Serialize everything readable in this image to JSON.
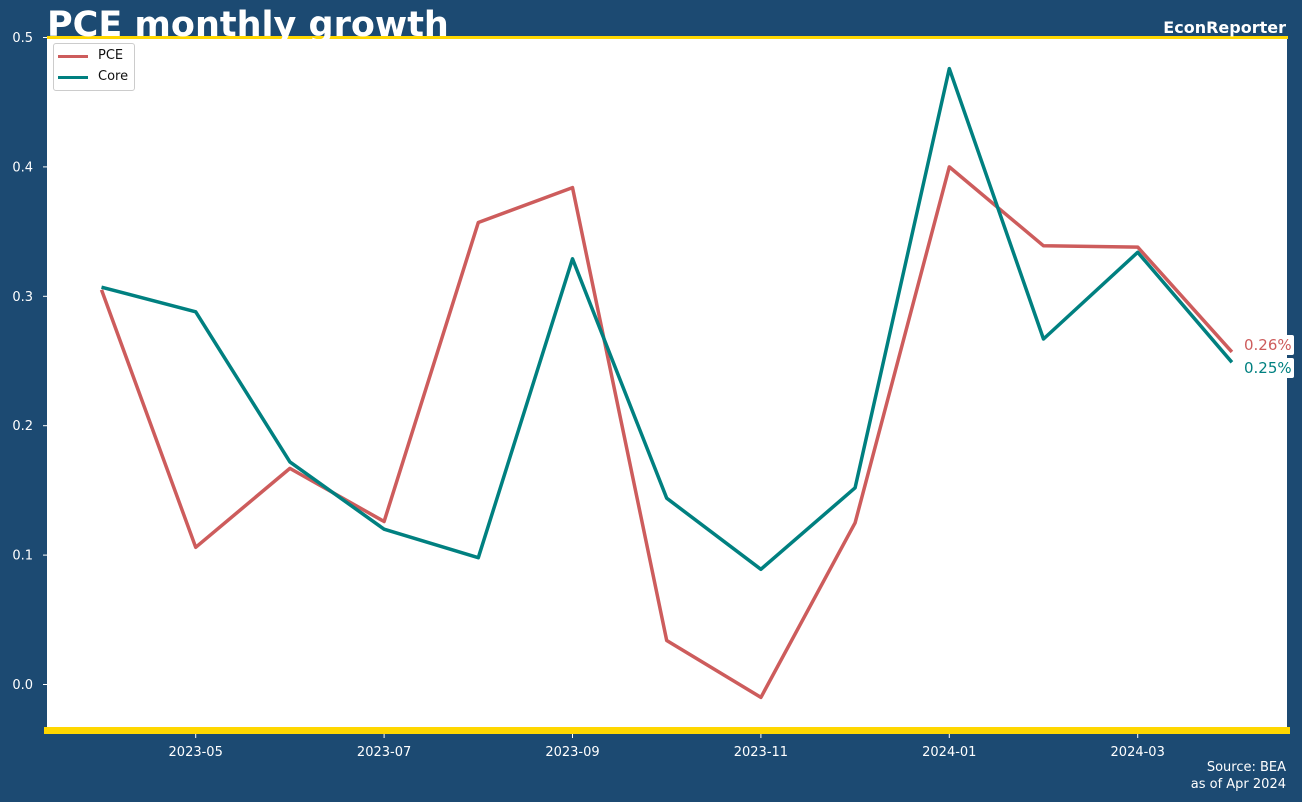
{
  "header": {
    "title": "PCE monthly growth",
    "brand": "EconReporter"
  },
  "footer": {
    "source": "Source: BEA",
    "asof": "as of Apr 2024"
  },
  "colors": {
    "background": "#1c4a72",
    "plot_background": "#ffffff",
    "accent": "#ffd700",
    "text": "#ffffff"
  },
  "chart_data": {
    "type": "line",
    "x": [
      "2023-04",
      "2023-05",
      "2023-06",
      "2023-07",
      "2023-08",
      "2023-09",
      "2023-10",
      "2023-11",
      "2023-12",
      "2024-01",
      "2024-02",
      "2024-03",
      "2024-04"
    ],
    "x_tick_labels": [
      "2023-05",
      "2023-07",
      "2023-09",
      "2023-11",
      "2024-01",
      "2024-03"
    ],
    "y_ticks": [
      "0.0",
      "0.1",
      "0.2",
      "0.3",
      "0.4",
      "0.5"
    ],
    "ylim": [
      -0.035,
      0.5
    ],
    "series": [
      {
        "name": "PCE",
        "color": "#cd5c5c",
        "values": [
          0.305,
          0.106,
          0.167,
          0.126,
          0.357,
          0.384,
          0.034,
          -0.01,
          0.125,
          0.4,
          0.339,
          0.338,
          0.257
        ],
        "end_label": "0.26%"
      },
      {
        "name": "Core",
        "color": "#008080",
        "values": [
          0.307,
          0.288,
          0.172,
          0.12,
          0.098,
          0.329,
          0.144,
          0.089,
          0.152,
          0.476,
          0.267,
          0.334,
          0.249
        ],
        "end_label": "0.25%"
      }
    ],
    "legend_position": "top-left",
    "grid": false
  }
}
